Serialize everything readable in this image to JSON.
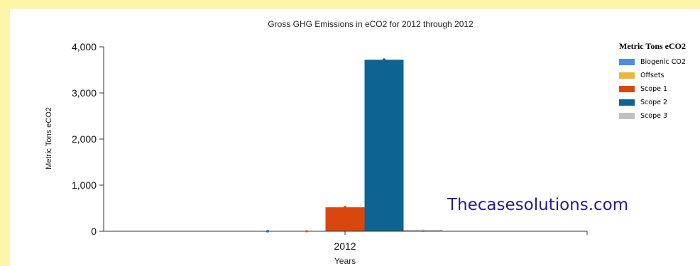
{
  "chart_data": {
    "type": "bar",
    "title": "Gross GHG Emissions in eCO2 for 2012 through 2012",
    "xlabel": "Years",
    "ylabel": "Metric Tons eCO2",
    "categories": [
      "2012"
    ],
    "ylim": [
      0,
      4000
    ],
    "yticks": [
      0,
      1000,
      2000,
      3000,
      4000
    ],
    "ytick_labels": [
      "0",
      "1,000",
      "2,000",
      "3,000",
      "4,000"
    ],
    "grid": false,
    "legend_placement": "right",
    "legend_title": "Metric Tons eCO2",
    "series": [
      {
        "name": "Biogenic CO2",
        "values": [
          0
        ],
        "color": "#4a8fe0"
      },
      {
        "name": "Offsets",
        "values": [
          0
        ],
        "color": "#f0b43a"
      },
      {
        "name": "Scope 1",
        "values": [
          520
        ],
        "color": "#d9470f"
      },
      {
        "name": "Scope 2",
        "values": [
          3720
        ],
        "color": "#0e6491"
      },
      {
        "name": "Scope 3",
        "values": [
          10
        ],
        "color": "#c0c0c0"
      }
    ]
  },
  "watermark": "Thecasesolutions.com"
}
